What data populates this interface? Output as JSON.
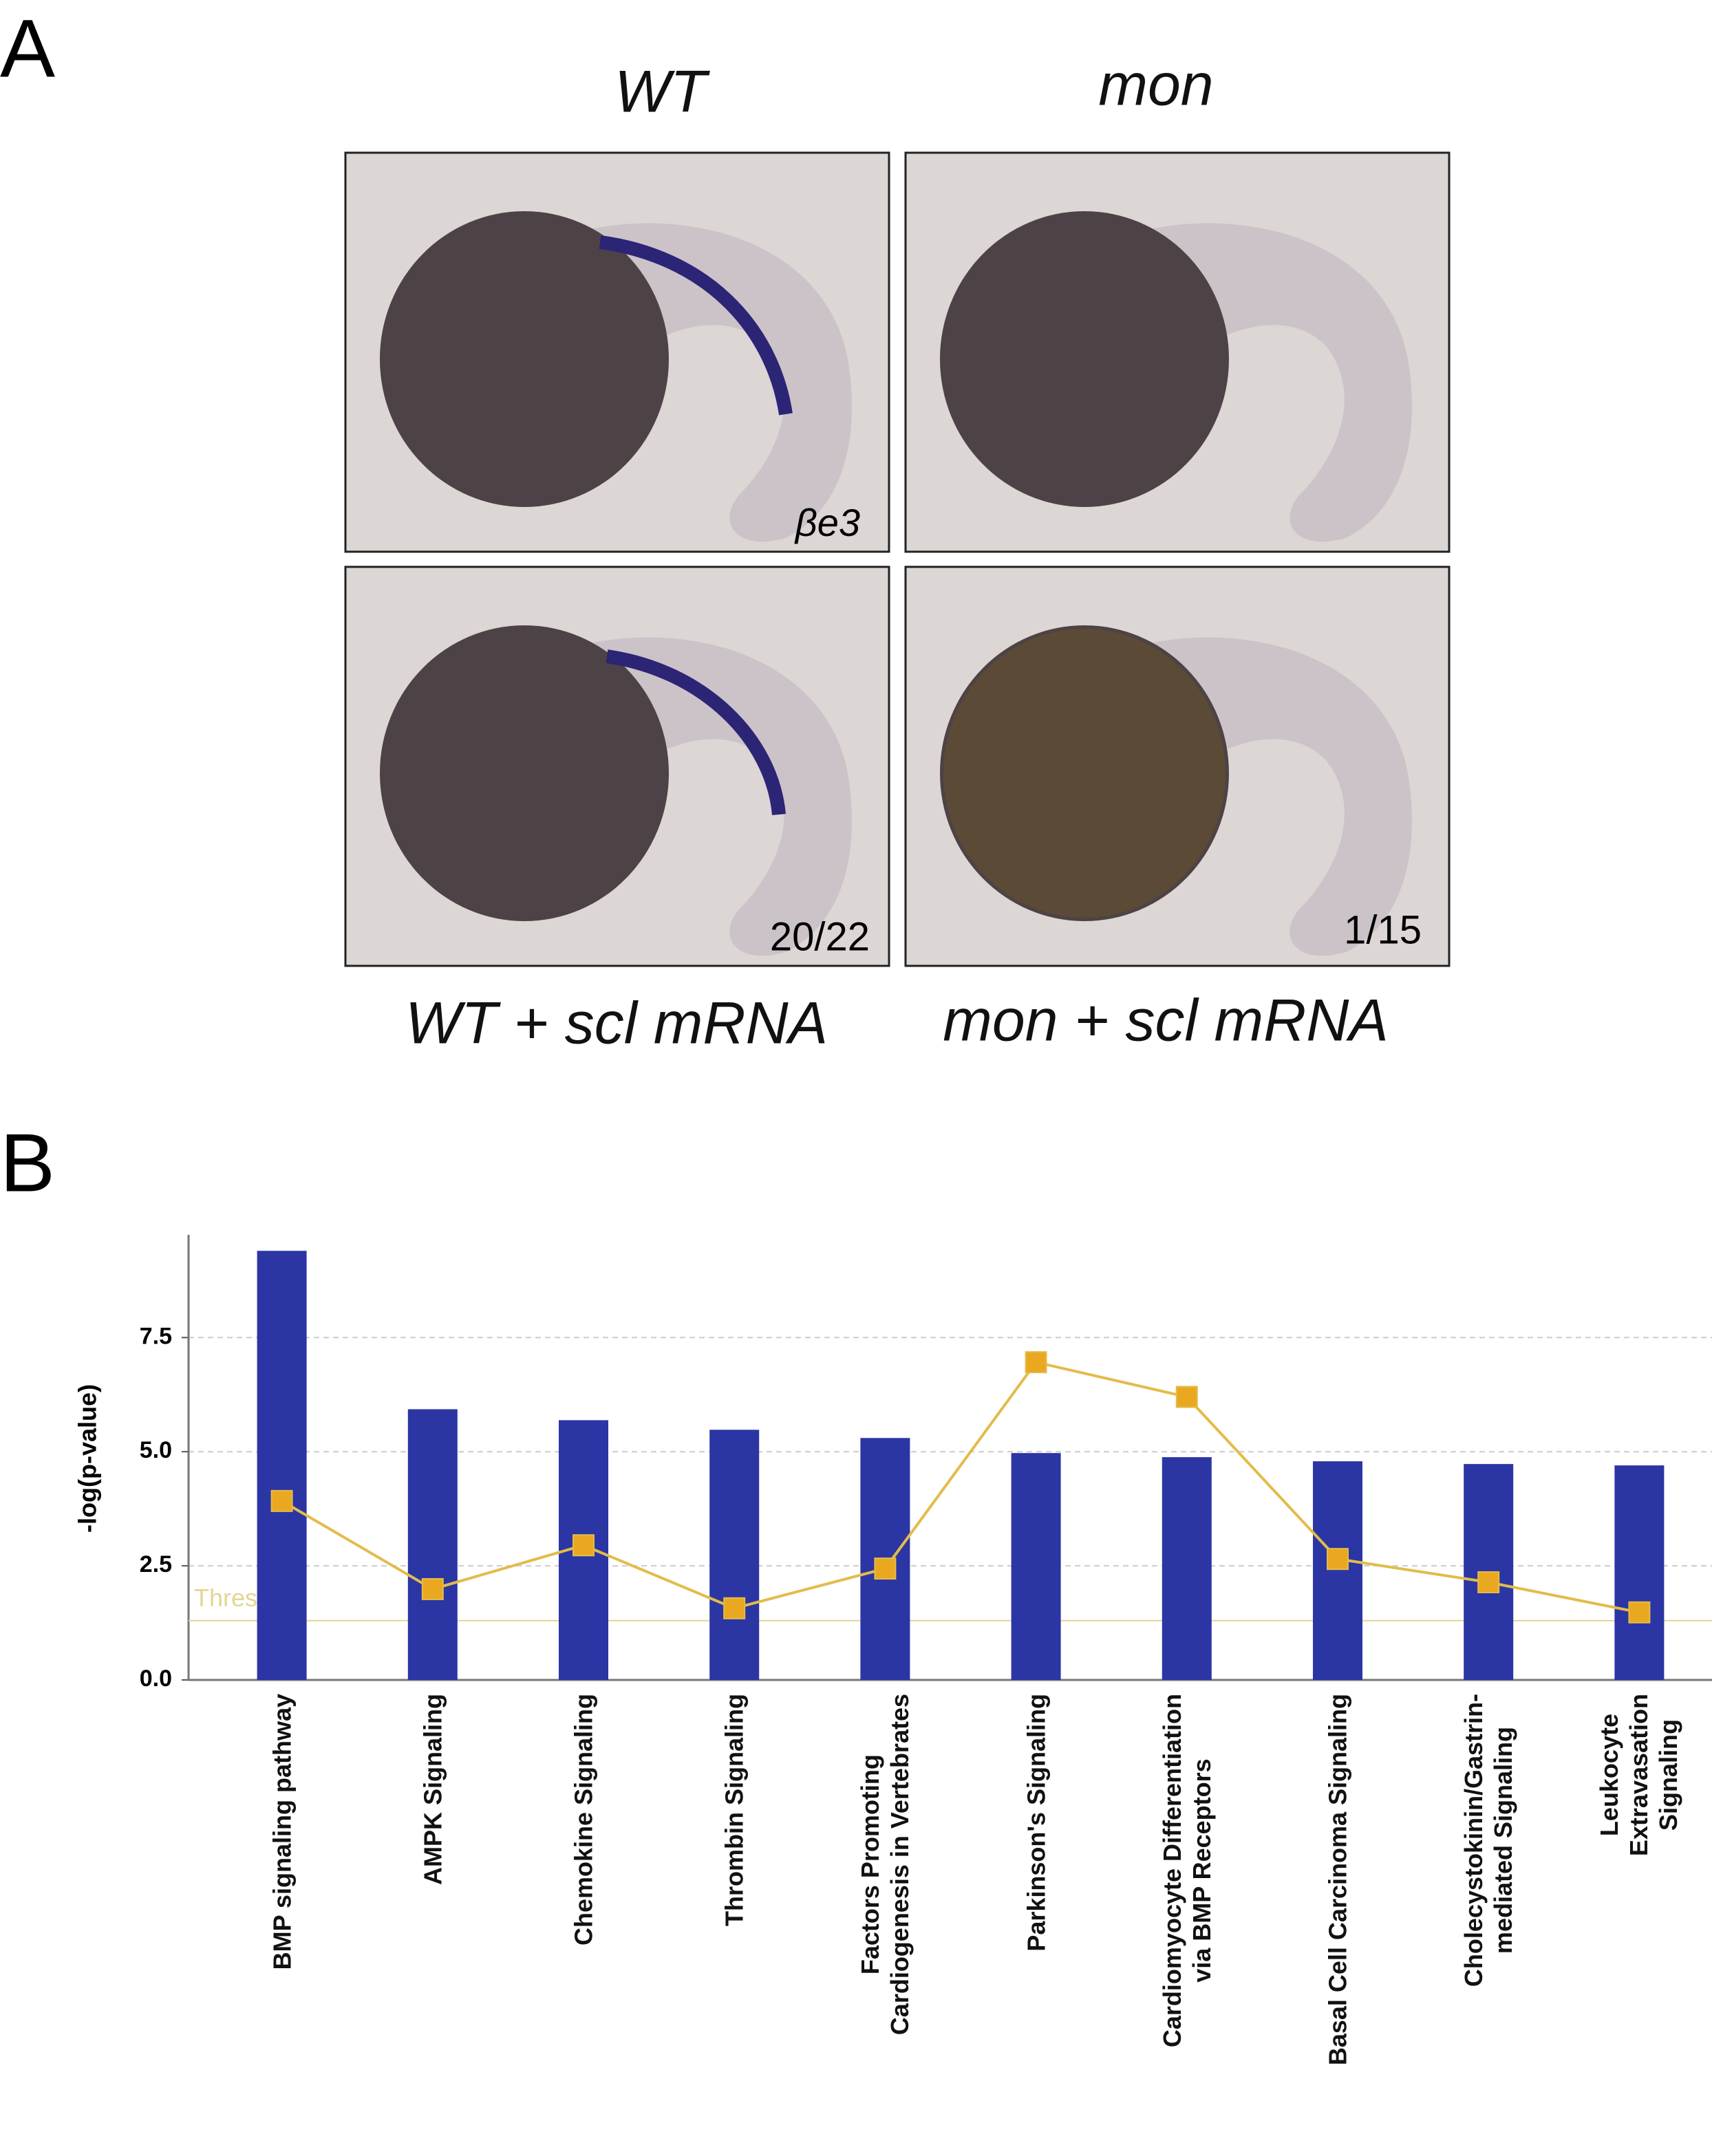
{
  "panel_a": {
    "label": "A",
    "columns": [
      "WT",
      "mon"
    ],
    "image_annotations": [
      "βe3",
      "20/22",
      "1/15"
    ],
    "captions": [
      "WT + scl mRNA",
      "mon + scl mRNA"
    ]
  },
  "panel_b_label": "B",
  "chart_data": {
    "type": "bar",
    "y_label": "-log(p-value)",
    "categories": [
      "BMP signaling pathway",
      "AMPK Signaling",
      "Chemokine Signaling",
      "Thrombin Signaling",
      "Factors Promoting\nCardiogenesis in Vertebrates",
      "Parkinson's Signaling",
      "Cardiomyocyte Differentiation\nvia BMP Receptors",
      "Basal Cell Carcinoma Signaling",
      "Cholecystokinin/Gastrin-\nmediated Signaling",
      "Leukocyte Extravasation\nSignaling"
    ],
    "series": [
      {
        "type": "bar",
        "color": "#2b35a3",
        "values": [
          9.4,
          5.93,
          5.69,
          5.48,
          5.3,
          4.97,
          4.88,
          4.79,
          4.73,
          4.7
        ]
      },
      {
        "type": "line",
        "color": "#e2bc4a",
        "marker_color": "#eaa821",
        "values": [
          3.92,
          1.99,
          2.95,
          1.57,
          2.44,
          6.96,
          6.2,
          2.65,
          2.14,
          1.48
        ]
      }
    ],
    "threshold": {
      "value": 1.3,
      "label": "Threshold",
      "color": "#e5d493"
    },
    "ylim": [
      0,
      9.75
    ],
    "yticks": [
      {
        "value": 0,
        "label": "0.0"
      },
      2.5,
      {
        "value": 5,
        "label": "5.0"
      },
      7.5
    ],
    "grid": true
  }
}
